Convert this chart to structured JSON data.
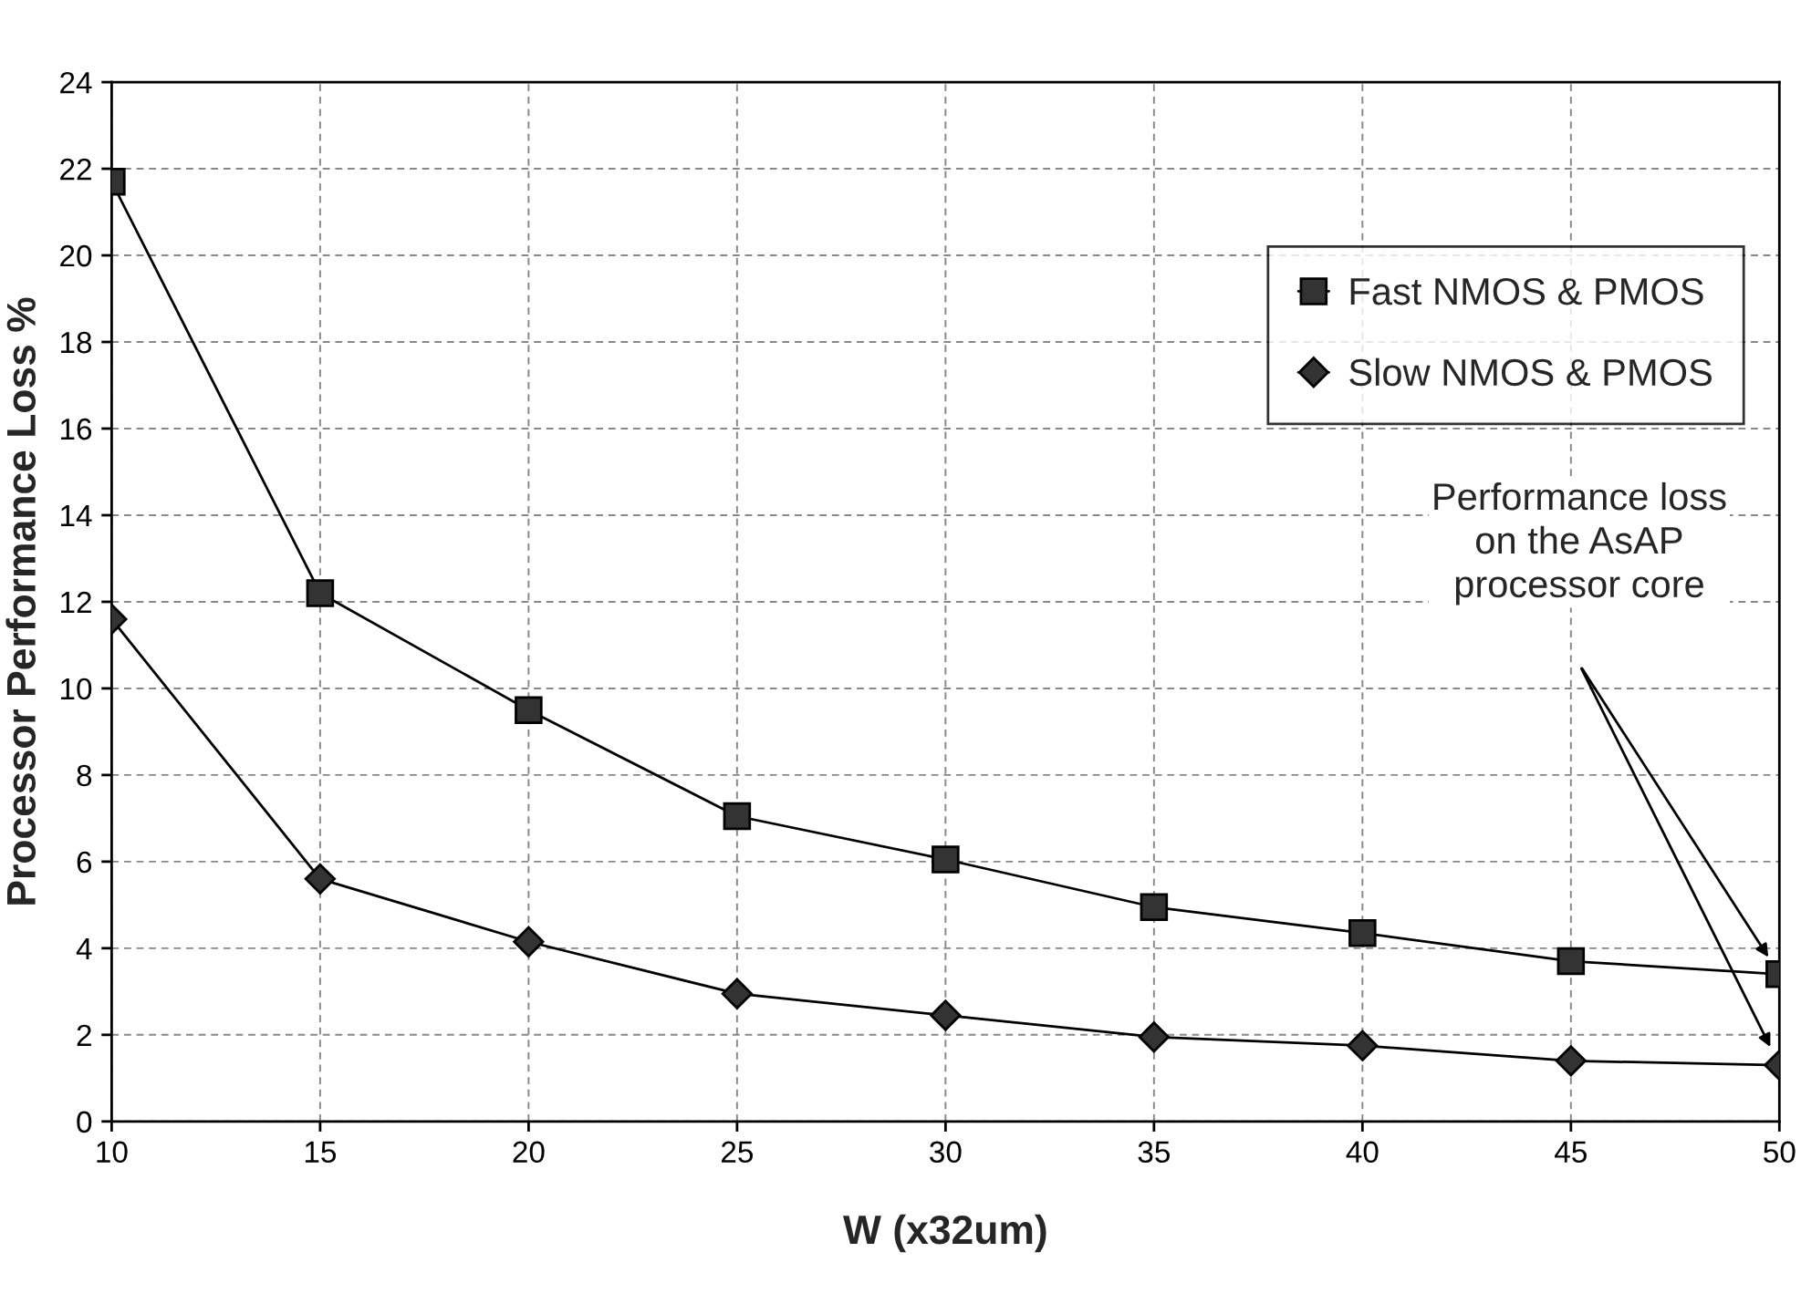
{
  "chart_data": {
    "type": "line",
    "xlabel": "W (x32um)",
    "ylabel": "Processor Performance Loss %",
    "x": [
      10,
      15,
      20,
      25,
      30,
      35,
      40,
      45,
      50
    ],
    "series": [
      {
        "name": "Fast NMOS & PMOS",
        "color": "#000000",
        "marker": "square",
        "values": [
          21.7,
          12.2,
          9.5,
          7.05,
          6.05,
          4.95,
          4.35,
          3.7,
          3.4
        ]
      },
      {
        "name": "Slow NMOS & PMOS",
        "color": "#000000",
        "marker": "diamond",
        "values": [
          11.6,
          5.6,
          4.15,
          2.95,
          2.45,
          1.95,
          1.75,
          1.4,
          1.3
        ]
      }
    ],
    "xlim": [
      10,
      50
    ],
    "xticks": [
      10,
      15,
      20,
      25,
      30,
      35,
      40,
      45,
      50
    ],
    "ylim": [
      0,
      24
    ],
    "yticks": [
      0,
      2,
      4,
      6,
      8,
      10,
      12,
      14,
      16,
      18,
      20,
      22,
      24
    ],
    "grid": true,
    "legend": "top right",
    "line_style": "solid",
    "annotations": [
      "Performance loss\non the AsAP\nprocessor core"
    ]
  }
}
